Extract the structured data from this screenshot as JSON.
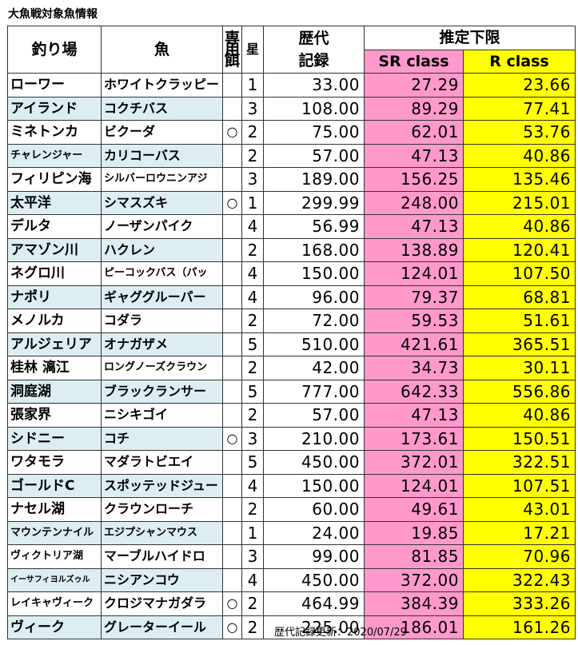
{
  "title": "大魚戦対象魚情報",
  "headers": {
    "place": "釣り場",
    "fish": "魚",
    "bait": [
      "専",
      "用",
      "餌"
    ],
    "star": "星",
    "record": [
      "歴代",
      "記録"
    ],
    "estimate": "推定下限",
    "sr_class": "SR class",
    "r_class": "R class"
  },
  "rows": [
    {
      "place": "ローワー",
      "fish": "ホワイトクラッピー",
      "bait": "",
      "star": "1",
      "record": "33.00",
      "sr": "27.29",
      "r": "23.66"
    },
    {
      "place": "アイランド",
      "fish": "コクチバス",
      "bait": "",
      "star": "3",
      "record": "108.00",
      "sr": "89.29",
      "r": "77.41"
    },
    {
      "place": "ミネトンカ",
      "fish": "ビクーダ",
      "bait": "○",
      "star": "2",
      "record": "75.00",
      "sr": "62.01",
      "r": "53.76"
    },
    {
      "place": "チャレンジャー",
      "fish": "カリコーバス",
      "bait": "",
      "star": "2",
      "record": "57.00",
      "sr": "47.13",
      "r": "40.86"
    },
    {
      "place": "フィリピン海",
      "fish": "シルバーロウニンアジ",
      "bait": "",
      "star": "3",
      "record": "189.00",
      "sr": "156.25",
      "r": "135.46"
    },
    {
      "place": "太平洋",
      "fish": "シマスズキ",
      "bait": "○",
      "star": "1",
      "record": "299.99",
      "sr": "248.00",
      "r": "215.01"
    },
    {
      "place": "デルタ",
      "fish": "ノーザンパイク",
      "bait": "",
      "star": "4",
      "record": "56.99",
      "sr": "47.13",
      "r": "40.86"
    },
    {
      "place": "アマゾン川",
      "fish": "ハクレン",
      "bait": "",
      "star": "2",
      "record": "168.00",
      "sr": "138.89",
      "r": "120.41"
    },
    {
      "place": "ネグロ川",
      "fish": "ピーコックバス（パッ",
      "bait": "",
      "star": "4",
      "record": "150.00",
      "sr": "124.01",
      "r": "107.50"
    },
    {
      "place": "ナポリ",
      "fish": "ギャググルーパー",
      "bait": "",
      "star": "4",
      "record": "96.00",
      "sr": "79.37",
      "r": "68.81"
    },
    {
      "place": "メノルカ",
      "fish": "コダラ",
      "bait": "",
      "star": "2",
      "record": "72.00",
      "sr": "59.53",
      "r": "51.61"
    },
    {
      "place": "アルジェリア",
      "fish": "オナガザメ",
      "bait": "",
      "star": "5",
      "record": "510.00",
      "sr": "421.61",
      "r": "365.51"
    },
    {
      "place": "桂林 漓江",
      "fish": "ロングノーズクラウン",
      "bait": "",
      "star": "2",
      "record": "42.00",
      "sr": "34.73",
      "r": "30.11"
    },
    {
      "place": "洞庭湖",
      "fish": "ブラックランサー",
      "bait": "",
      "star": "5",
      "record": "777.00",
      "sr": "642.33",
      "r": "556.86"
    },
    {
      "place": "張家界",
      "fish": "ニシキゴイ",
      "bait": "",
      "star": "2",
      "record": "57.00",
      "sr": "47.13",
      "r": "40.86"
    },
    {
      "place": "シドニー",
      "fish": "コチ",
      "bait": "○",
      "star": "3",
      "record": "210.00",
      "sr": "173.61",
      "r": "150.51"
    },
    {
      "place": "ワタモラ",
      "fish": "マダラトビエイ",
      "bait": "",
      "star": "5",
      "record": "450.00",
      "sr": "372.01",
      "r": "322.51"
    },
    {
      "place": "ゴールドC",
      "fish": "スポッテッドジュー",
      "bait": "",
      "star": "4",
      "record": "150.00",
      "sr": "124.01",
      "r": "107.51"
    },
    {
      "place": "ナセル湖",
      "fish": "クラウンローチ",
      "bait": "",
      "star": "2",
      "record": "60.00",
      "sr": "49.61",
      "r": "43.01"
    },
    {
      "place": "マウンテンナイル",
      "fish": "エジプシャンマウス",
      "bait": "",
      "star": "1",
      "record": "24.00",
      "sr": "19.85",
      "r": "17.21"
    },
    {
      "place": "ヴィクトリア湖",
      "fish": "マーブルハイドロ",
      "bait": "",
      "star": "3",
      "record": "99.00",
      "sr": "81.85",
      "r": "70.96"
    },
    {
      "place": "イーサフィヨルズゥル",
      "fish": "ニシアンコウ",
      "bait": "",
      "star": "4",
      "record": "450.00",
      "sr": "372.00",
      "r": "322.43"
    },
    {
      "place": "レイキャヴィーク",
      "fish": "クロジマナガダラ",
      "bait": "○",
      "star": "2",
      "record": "464.99",
      "sr": "384.39",
      "r": "333.26"
    },
    {
      "place": "ヴィーク",
      "fish": "グレーターイール",
      "bait": "○",
      "star": "2",
      "record": "225.00",
      "sr": "186.01",
      "r": "161.26"
    }
  ],
  "footer": "歴代記録更新：2020/07/29",
  "colors": {
    "sr_bg": "#ff99cc",
    "r_bg": "#ffff00",
    "alt_row_bg": "#ddeef3"
  }
}
